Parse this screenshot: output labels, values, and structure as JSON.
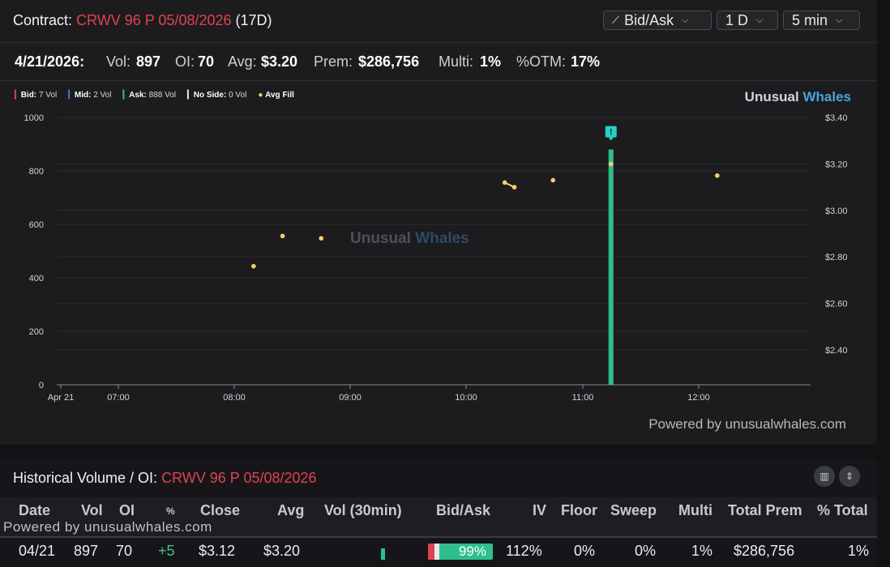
{
  "header": {
    "contract_label": "Contract:",
    "contract_name": "CRWV 96 P 05/08/2026",
    "days": "(17D)",
    "view_label": "Bid/Ask",
    "range_label": "1 D",
    "interval_label": "5 min"
  },
  "stats": {
    "date": "4/21/2026:",
    "vol_label": "Vol:",
    "vol": "897",
    "oi_label": "OI:",
    "oi": "70",
    "avg_label": "Avg:",
    "avg": "$3.20",
    "prem_label": "Prem:",
    "prem": "$286,756",
    "multi_label": "Multi:",
    "multi": "1%",
    "otm_label": "%OTM:",
    "otm": "17%"
  },
  "legend": {
    "bid": "Bid:",
    "bid_val": "7 Vol",
    "mid": "Mid:",
    "mid_val": "2 Vol",
    "ask": "Ask:",
    "ask_val": "888 Vol",
    "noside": "No Side:",
    "noside_val": "0 Vol",
    "avgfill": "Avg Fill"
  },
  "brand": {
    "a": "Unusual ",
    "b": "Whales"
  },
  "powered": "Powered by unusualwhales.com",
  "colors": {
    "red": "#e0424f",
    "green": "#2ebf8d",
    "blue": "#3a7bd5",
    "yellow": "#f5cf6b"
  },
  "chart_data": {
    "type": "bar",
    "x_ticks": [
      "Apr 21",
      "07:00",
      "08:00",
      "09:00",
      "10:00",
      "11:00",
      "12:00"
    ],
    "y_left_ticks": [
      "1000",
      "800",
      "600",
      "400",
      "200",
      "0"
    ],
    "y_right_ticks": [
      "$3.40",
      "$3.20",
      "$3.00",
      "$2.80",
      "$2.60",
      "$2.40"
    ],
    "ylim_left": [
      0,
      1000
    ],
    "ylim_right": [
      2.25,
      3.4
    ],
    "bars": [
      {
        "time": "11:15",
        "side": "Ask",
        "volume": 880
      }
    ],
    "avg_fill": [
      {
        "time": "08:10",
        "price": 2.76
      },
      {
        "time": "08:25",
        "price": 2.89
      },
      {
        "time": "08:45",
        "price": 2.88
      },
      {
        "time": "10:20",
        "price": 3.12
      },
      {
        "time": "10:25",
        "price": 3.1
      },
      {
        "time": "10:45",
        "price": 3.13
      },
      {
        "time": "11:15",
        "price": 3.2
      },
      {
        "time": "12:10",
        "price": 3.15
      }
    ],
    "marker": "!"
  },
  "history": {
    "title_label": "Historical Volume / OI:",
    "title_contract": "CRWV 96 P 05/08/2026",
    "columns": [
      "Date",
      "Vol",
      "OI",
      "%",
      "Close",
      "Avg",
      "Vol (30min)",
      "Bid/Ask",
      "IV",
      "Floor",
      "Sweep",
      "Multi",
      "Total Prem",
      "% Total"
    ],
    "powered": "Powered by unusualwhales.com",
    "rows": [
      {
        "date": "04/21",
        "vol": "897",
        "oi": "70",
        "pct": "+5",
        "close": "$3.12",
        "avg": "$3.20",
        "bidask": "99%",
        "iv": "112%",
        "floor": "0%",
        "sweep": "0%",
        "multi": "1%",
        "total_prem": "$286,756",
        "pct_total": "1%"
      }
    ]
  }
}
